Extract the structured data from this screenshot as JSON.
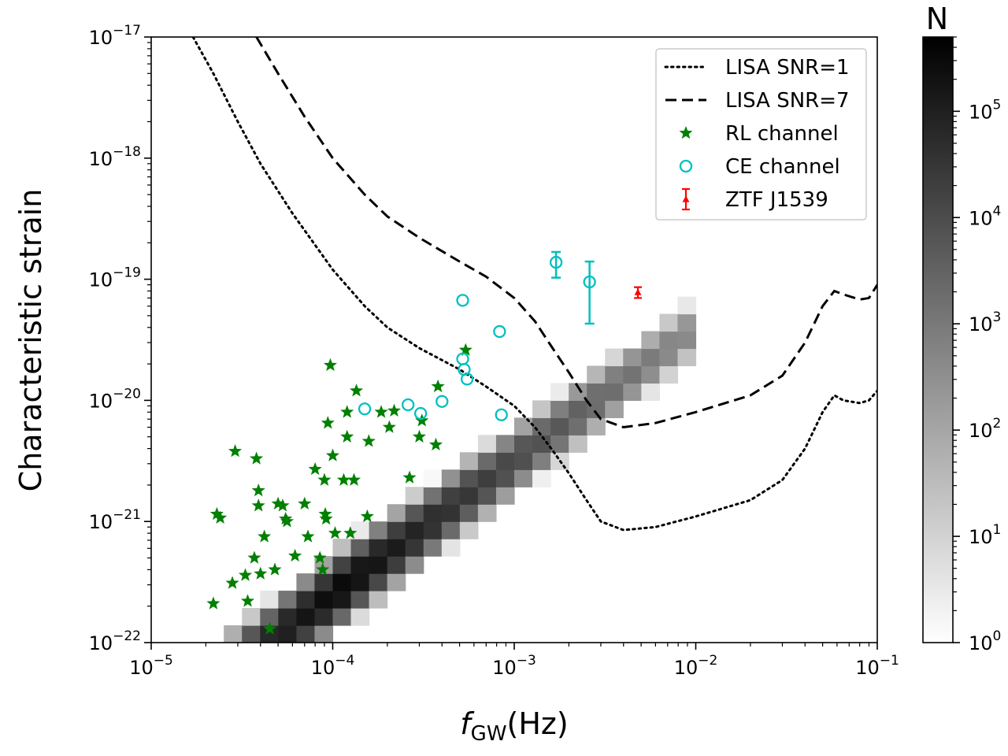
{
  "chart_data": {
    "type": "scatter",
    "title": "",
    "xlabel": "f_GW(Hz)",
    "ylabel": "Characteristic strain",
    "xscale": "log",
    "yscale": "log",
    "xlim": [
      1e-05,
      0.1
    ],
    "ylim": [
      1e-22,
      1e-17
    ],
    "x_ticks": [
      {
        "value": 1e-05,
        "base": "10",
        "exp": "−5"
      },
      {
        "value": 0.0001,
        "base": "10",
        "exp": "−4"
      },
      {
        "value": 0.001,
        "base": "10",
        "exp": "−3"
      },
      {
        "value": 0.01,
        "base": "10",
        "exp": "−2"
      },
      {
        "value": 0.1,
        "base": "10",
        "exp": "−1"
      }
    ],
    "y_ticks": [
      {
        "value": 1e-22,
        "base": "10",
        "exp": "−22"
      },
      {
        "value": 1e-21,
        "base": "10",
        "exp": "−21"
      },
      {
        "value": 1e-20,
        "base": "10",
        "exp": "−20"
      },
      {
        "value": 1e-19,
        "base": "10",
        "exp": "−19"
      },
      {
        "value": 1e-18,
        "base": "10",
        "exp": "−18"
      },
      {
        "value": 1e-17,
        "base": "10",
        "exp": "−17"
      }
    ],
    "colorbar": {
      "title": "N",
      "scale": "log",
      "range": [
        1,
        500000
      ],
      "ticks": [
        {
          "value": 1,
          "base": "10",
          "exp": "0"
        },
        {
          "value": 10,
          "base": "10",
          "exp": "1"
        },
        {
          "value": 100,
          "base": "10",
          "exp": "2"
        },
        {
          "value": 1000,
          "base": "10",
          "exp": "3"
        },
        {
          "value": 10000,
          "base": "10",
          "exp": "4"
        },
        {
          "value": 100000,
          "base": "10",
          "exp": "5"
        }
      ]
    },
    "heatmap": {
      "description": "2D histogram of simulated population; ridge log10(h) = a + b*log10(f); bins 0.1 dex in f and ~0.14 dex in h",
      "log_f_range": [
        -5.0,
        -1.0
      ],
      "log_h_range": [
        -22.0,
        -17.0
      ],
      "bins_f": 40,
      "bins_h": 35,
      "ridge_intercept": -17.2,
      "ridge_slope": 1.1,
      "peak_log10_N": 5.6,
      "peak_log_f": -3.95,
      "ridge_sigma_dex": 0.27,
      "log_f_min_cut": -5.0,
      "log_f_max_cut": -1.95,
      "log_h_max_cut": -18.5
    },
    "series": [
      {
        "name": "LISA SNR=1",
        "style": "dotted",
        "color": "#000000",
        "points": [
          [
            1.7e-05,
            1e-17
          ],
          [
            2.2e-05,
            5e-18
          ],
          [
            3e-05,
            2e-18
          ],
          [
            4e-05,
            9e-19
          ],
          [
            6e-05,
            3.5e-19
          ],
          [
            0.0001,
            1.2e-19
          ],
          [
            0.00015,
            6e-20
          ],
          [
            0.0002,
            4e-20
          ],
          [
            0.0003,
            2.7e-20
          ],
          [
            0.0005,
            1.8e-20
          ],
          [
            0.0007,
            1.3e-20
          ],
          [
            0.001,
            9e-21
          ],
          [
            0.0013,
            6e-21
          ],
          [
            0.0016,
            4e-21
          ],
          [
            0.002,
            2.5e-21
          ],
          [
            0.0025,
            1.5e-21
          ],
          [
            0.003,
            1e-21
          ],
          [
            0.004,
            8.5e-22
          ],
          [
            0.006,
            9e-22
          ],
          [
            0.01,
            1.1e-21
          ],
          [
            0.02,
            1.5e-21
          ],
          [
            0.03,
            2.2e-21
          ],
          [
            0.04,
            4e-21
          ],
          [
            0.05,
            8e-21
          ],
          [
            0.058,
            1.1e-20
          ],
          [
            0.065,
            1e-20
          ],
          [
            0.08,
            9.5e-21
          ],
          [
            0.09,
            1e-20
          ],
          [
            0.1,
            1.2e-20
          ]
        ]
      },
      {
        "name": "LISA SNR=7",
        "style": "dashed",
        "color": "#000000",
        "points": [
          [
            3.8e-05,
            1e-17
          ],
          [
            5e-05,
            5e-18
          ],
          [
            7e-05,
            2.2e-18
          ],
          [
            0.0001,
            1e-18
          ],
          [
            0.00015,
            5e-19
          ],
          [
            0.0002,
            3.3e-19
          ],
          [
            0.0003,
            2.2e-19
          ],
          [
            0.0005,
            1.4e-19
          ],
          [
            0.0007,
            1.05e-19
          ],
          [
            0.001,
            7e-20
          ],
          [
            0.0013,
            4.5e-20
          ],
          [
            0.0016,
            2.8e-20
          ],
          [
            0.002,
            1.7e-20
          ],
          [
            0.0025,
            1e-20
          ],
          [
            0.003,
            7e-21
          ],
          [
            0.004,
            6e-21
          ],
          [
            0.006,
            6.5e-21
          ],
          [
            0.01,
            8e-21
          ],
          [
            0.02,
            1.1e-20
          ],
          [
            0.03,
            1.6e-20
          ],
          [
            0.04,
            3e-20
          ],
          [
            0.05,
            6e-20
          ],
          [
            0.058,
            8e-20
          ],
          [
            0.065,
            7.5e-20
          ],
          [
            0.08,
            6.8e-20
          ],
          [
            0.09,
            7e-20
          ],
          [
            0.1,
            9e-20
          ]
        ]
      },
      {
        "name": "RL channel",
        "marker": "star",
        "color": "#008000",
        "points": [
          [
            2.2e-05,
            2.1e-22
          ],
          [
            2.3e-05,
            1.15e-21
          ],
          [
            2.4e-05,
            1.07e-21
          ],
          [
            2.8e-05,
            3.1e-22
          ],
          [
            2.9e-05,
            3.8e-21
          ],
          [
            3.3e-05,
            3.6e-22
          ],
          [
            3.4e-05,
            2.2e-22
          ],
          [
            3.7e-05,
            5e-22
          ],
          [
            3.8e-05,
            3.3e-21
          ],
          [
            3.9e-05,
            1.8e-21
          ],
          [
            3.9e-05,
            1.35e-21
          ],
          [
            4e-05,
            3.7e-22
          ],
          [
            4.2e-05,
            7.5e-22
          ],
          [
            4.5e-05,
            1.3e-22
          ],
          [
            4.8e-05,
            4e-22
          ],
          [
            5e-05,
            1.4e-21
          ],
          [
            5.3e-05,
            1.35e-21
          ],
          [
            5.5e-05,
            1.05e-21
          ],
          [
            5.6e-05,
            1e-21
          ],
          [
            6.2e-05,
            5.2e-22
          ],
          [
            7e-05,
            1.4e-21
          ],
          [
            7.3e-05,
            7.5e-22
          ],
          [
            8e-05,
            2.7e-21
          ],
          [
            8.5e-05,
            5e-22
          ],
          [
            8.8e-05,
            4e-22
          ],
          [
            9e-05,
            2.2e-21
          ],
          [
            9.1e-05,
            1.15e-21
          ],
          [
            9.2e-05,
            1.05e-21
          ],
          [
            9.4e-05,
            6.5e-21
          ],
          [
            9.7e-05,
            1.95e-20
          ],
          [
            0.0001,
            3.5e-21
          ],
          [
            0.000103,
            8e-22
          ],
          [
            0.000115,
            2.2e-21
          ],
          [
            0.00012,
            8e-21
          ],
          [
            0.00012,
            5e-21
          ],
          [
            0.000125,
            8e-22
          ],
          [
            0.000131,
            2.2e-21
          ],
          [
            0.000135,
            1.2e-20
          ],
          [
            0.000155,
            1.1e-21
          ],
          [
            0.000158,
            4.6e-21
          ],
          [
            0.000185,
            8e-21
          ],
          [
            0.000205,
            6e-21
          ],
          [
            0.000218,
            8.2e-21
          ],
          [
            0.000265,
            2.3e-21
          ],
          [
            0.0003,
            5e-21
          ],
          [
            0.00031,
            6.8e-21
          ],
          [
            0.00037,
            4.3e-21
          ],
          [
            0.00038,
            1.3e-20
          ],
          [
            0.00054,
            2.6e-20
          ]
        ]
      },
      {
        "name": "CE channel",
        "marker": "circle-open",
        "color": "#00BFBF",
        "points": [
          {
            "x": 0.00015,
            "y": 8.5e-21
          },
          {
            "x": 0.00026,
            "y": 9.2e-21
          },
          {
            "x": 0.000305,
            "y": 7.8e-21
          },
          {
            "x": 0.0004,
            "y": 9.8e-21
          },
          {
            "x": 0.00052,
            "y": 6.7e-20
          },
          {
            "x": 0.00052,
            "y": 2.2e-20
          },
          {
            "x": 0.00053,
            "y": 1.8e-20
          },
          {
            "x": 0.00055,
            "y": 1.5e-20
          },
          {
            "x": 0.00083,
            "y": 3.7e-20
          },
          {
            "x": 0.00085,
            "y": 7.6e-21
          },
          {
            "x": 0.0017,
            "y": 1.38e-19,
            "yerr_low": 1.03e-19,
            "yerr_high": 1.68e-19
          },
          {
            "x": 0.0026,
            "y": 9.5e-20,
            "yerr_low": 4.3e-20,
            "yerr_high": 1.4e-19
          }
        ]
      },
      {
        "name": "ZTF J1539",
        "marker": "triangle-up",
        "color": "#FF0000",
        "points": [
          {
            "x": 0.0048,
            "y": 7.8e-20,
            "yerr_low": 7e-20,
            "yerr_high": 8.6e-20
          }
        ]
      }
    ],
    "legend": {
      "position": "top-right",
      "entries": [
        "LISA SNR=1",
        "LISA SNR=7",
        "RL channel",
        "CE channel",
        "ZTF J1539"
      ]
    }
  }
}
